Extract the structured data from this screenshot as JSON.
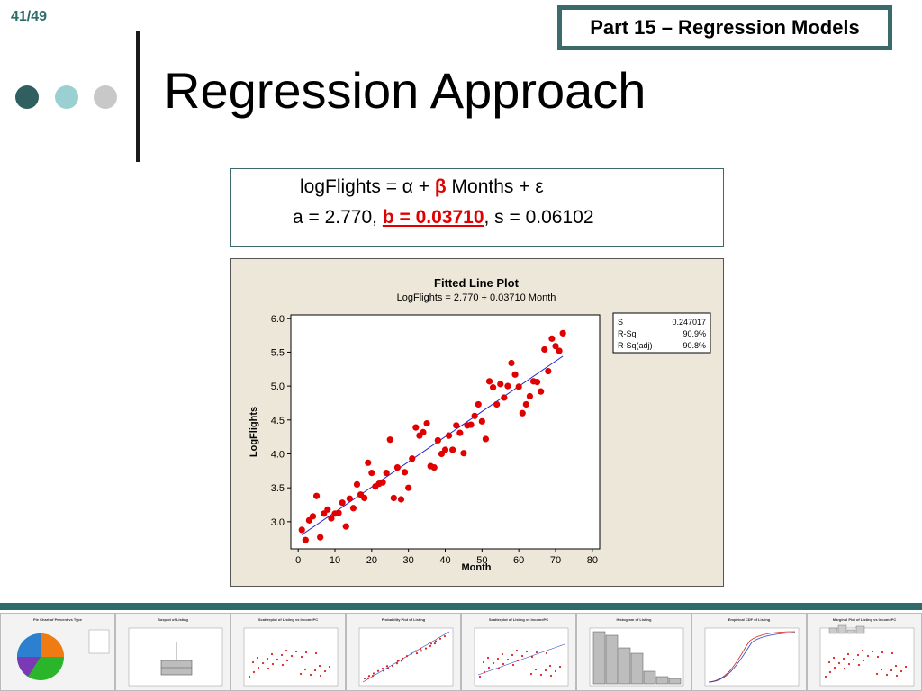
{
  "slide_number": "41/49",
  "part_label": "Part 15 – Regression Models",
  "title": "Regression Approach",
  "equation": {
    "line1_prefix": "logFlights = α + ",
    "line1_beta": "β",
    "line1_suffix": " Months + ε",
    "line2_prefix": "a = 2.770, ",
    "line2_b": "b = 0.03710",
    "line2_suffix": ", s = 0.06102"
  },
  "colors": {
    "accent": "#2f6b6b",
    "dot1": "#2f5f5f",
    "dot2": "#9bd0d3",
    "dot3": "#c8c8c8",
    "points": "#e00000",
    "fit_line": "#2222cc",
    "plot_bg": "#ece7d8"
  },
  "chart_data": {
    "type": "scatter",
    "title": "Fitted Line Plot",
    "subtitle": "LogFlights =  2.770 + 0.03710 Month",
    "xlabel": "Month",
    "ylabel": "LogFlights",
    "xlim": [
      -2,
      82
    ],
    "ylim": [
      2.6,
      6.05
    ],
    "xticks": [
      0,
      10,
      20,
      30,
      40,
      50,
      60,
      70,
      80
    ],
    "yticks": [
      3.0,
      3.5,
      4.0,
      4.5,
      5.0,
      5.5,
      6.0
    ],
    "fit": {
      "intercept": 2.77,
      "slope": 0.0371,
      "x_range": [
        1,
        72
      ]
    },
    "stats": [
      {
        "label": "S",
        "value": "0.247017"
      },
      {
        "label": "R-Sq",
        "value": "90.9%"
      },
      {
        "label": "R-Sq(adj)",
        "value": "90.8%"
      }
    ],
    "points": [
      [
        1,
        2.88
      ],
      [
        2,
        2.73
      ],
      [
        3,
        3.02
      ],
      [
        4,
        3.08
      ],
      [
        5,
        3.38
      ],
      [
        6,
        2.77
      ],
      [
        7,
        3.12
      ],
      [
        8,
        3.18
      ],
      [
        9,
        3.05
      ],
      [
        10,
        3.12
      ],
      [
        11,
        3.13
      ],
      [
        12,
        3.28
      ],
      [
        13,
        2.93
      ],
      [
        14,
        3.34
      ],
      [
        15,
        3.2
      ],
      [
        16,
        3.55
      ],
      [
        17,
        3.4
      ],
      [
        18,
        3.35
      ],
      [
        19,
        3.87
      ],
      [
        20,
        3.72
      ],
      [
        21,
        3.52
      ],
      [
        22,
        3.56
      ],
      [
        23,
        3.58
      ],
      [
        24,
        3.72
      ],
      [
        25,
        4.21
      ],
      [
        26,
        3.35
      ],
      [
        27,
        3.8
      ],
      [
        28,
        3.33
      ],
      [
        29,
        3.73
      ],
      [
        30,
        3.5
      ],
      [
        31,
        3.93
      ],
      [
        32,
        4.39
      ],
      [
        33,
        4.27
      ],
      [
        34,
        4.32
      ],
      [
        35,
        4.45
      ],
      [
        36,
        3.82
      ],
      [
        37,
        3.8
      ],
      [
        38,
        4.2
      ],
      [
        39,
        4.0
      ],
      [
        40,
        4.06
      ],
      [
        41,
        4.27
      ],
      [
        42,
        4.06
      ],
      [
        43,
        4.42
      ],
      [
        44,
        4.31
      ],
      [
        45,
        4.01
      ],
      [
        46,
        4.42
      ],
      [
        47,
        4.43
      ],
      [
        48,
        4.56
      ],
      [
        49,
        4.73
      ],
      [
        50,
        4.48
      ],
      [
        51,
        4.22
      ],
      [
        52,
        5.07
      ],
      [
        53,
        4.98
      ],
      [
        54,
        4.73
      ],
      [
        55,
        5.03
      ],
      [
        56,
        4.83
      ],
      [
        57,
        5.0
      ],
      [
        58,
        5.34
      ],
      [
        59,
        5.17
      ],
      [
        60,
        4.99
      ],
      [
        61,
        4.6
      ],
      [
        62,
        4.73
      ],
      [
        63,
        4.85
      ],
      [
        64,
        5.07
      ],
      [
        65,
        5.06
      ],
      [
        66,
        4.92
      ],
      [
        67,
        5.54
      ],
      [
        68,
        5.22
      ],
      [
        69,
        5.7
      ],
      [
        70,
        5.59
      ],
      [
        71,
        5.52
      ],
      [
        72,
        5.78
      ]
    ]
  },
  "thumbnails": [
    {
      "title": "Pie Chart of Percent vs Type"
    },
    {
      "title": "Boxplot of Listing"
    },
    {
      "title": "Scatterplot of Listing vs IncomePC"
    },
    {
      "title": "Probability Plot of Listing"
    },
    {
      "title": "Scatterplot of Listing vs IncomePC"
    },
    {
      "title": "Histogram of Listing"
    },
    {
      "title": "Empirical CDF of Listing"
    },
    {
      "title": "Marginal Plot of Listing vs IncomePC"
    }
  ]
}
